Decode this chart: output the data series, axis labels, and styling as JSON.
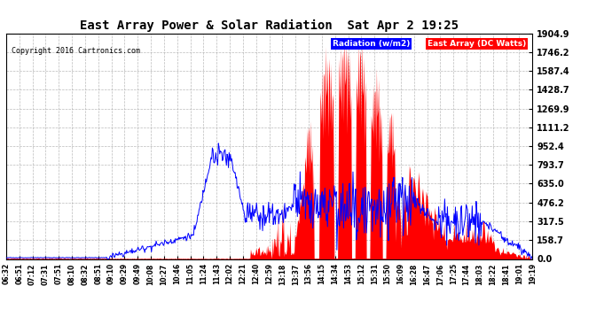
{
  "title": "East Array Power & Solar Radiation  Sat Apr 2 19:25",
  "copyright": "Copyright 2016 Cartronics.com",
  "legend_radiation": "Radiation (w/m2)",
  "legend_east_array": "East Array (DC Watts)",
  "background_color": "#FFFFFF",
  "plot_bg_color": "#FFFFFF",
  "grid_color": "#AAAAAA",
  "yticks": [
    0.0,
    158.7,
    317.5,
    476.2,
    635.0,
    793.7,
    952.4,
    1111.2,
    1269.9,
    1428.7,
    1587.4,
    1746.2,
    1904.9
  ],
  "ymax": 1904.9,
  "xtick_labels": [
    "06:32",
    "06:51",
    "07:12",
    "07:31",
    "07:51",
    "08:10",
    "08:32",
    "08:51",
    "09:10",
    "09:29",
    "09:49",
    "10:08",
    "10:27",
    "10:46",
    "11:05",
    "11:24",
    "11:43",
    "12:02",
    "12:21",
    "12:40",
    "12:59",
    "13:18",
    "13:37",
    "13:56",
    "14:15",
    "14:34",
    "14:53",
    "15:12",
    "15:31",
    "15:50",
    "16:09",
    "16:28",
    "16:47",
    "17:06",
    "17:25",
    "17:44",
    "18:03",
    "18:22",
    "18:41",
    "19:01",
    "19:19"
  ]
}
